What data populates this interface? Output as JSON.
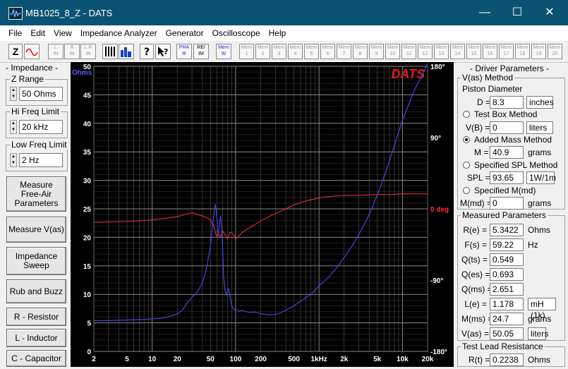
{
  "window": {
    "title": "MB1025_8_Z - DATS",
    "minimize": "—",
    "maximize": "☐",
    "close": "✕"
  },
  "menu": [
    "File",
    "Edit",
    "View",
    "Impedance Analyzer",
    "Generator",
    "Oscilloscope",
    "Help"
  ],
  "toolbar": {
    "z_label": "Z",
    "lin_buttons": [
      "L\nIN",
      "R\nIN",
      "L R\nIN"
    ],
    "pha_label": "PHA\nΦ",
    "reim_label": "RE/\nIM",
    "mem_label": "Mem\nW",
    "mem_slots": [
      "1",
      "2",
      "3",
      "4",
      "5",
      "6",
      "7",
      "8",
      "9",
      "10",
      "11",
      "12",
      "13",
      "14",
      "15",
      "16",
      "17",
      "18",
      "19",
      "20"
    ],
    "mem_prefix": "Mem"
  },
  "left_panel": {
    "title": "- Impedance -",
    "z_range": {
      "label": "Z Range",
      "value": "50 Ohms"
    },
    "hi_freq": {
      "label": "Hi Freq Limit",
      "value": "20 kHz"
    },
    "low_freq": {
      "label": "Low Freq Limit",
      "value": "2 Hz"
    },
    "buttons": [
      "Measure\nFree-Air\nParameters",
      "Measure V(as)",
      "Impedance\nSweep",
      "Rub and Buzz",
      "R - Resistor",
      "L - Inductor",
      "C - Capacitor"
    ]
  },
  "right_panel": {
    "title": "- Driver Parameters -",
    "vas_method_label": "V(as) Method",
    "piston_label": "Piston Diameter",
    "d_label": "D =",
    "d_value": "8.3",
    "d_unit": "inches",
    "test_box_label": "Test Box Method",
    "vb_label": "V(B) =",
    "vb_value": "0",
    "vb_unit": "liters",
    "added_mass_label": "Added Mass Method",
    "m_label": "M =",
    "m_value": "40.9",
    "m_unit": "grams",
    "spl_method_label": "Specified SPL Method",
    "spl_label": "SPL =",
    "spl_value": "93.65",
    "spl_unit": "1W/1m",
    "mmd_method_label": "Specified M(md)",
    "mmd_label": "M(md) =",
    "mmd_value": "0",
    "mmd_unit": "grams",
    "measured_title": "Measured Parameters",
    "measured": [
      {
        "label": "R(e) =",
        "value": "5.3422",
        "unit": "Ohms"
      },
      {
        "label": "F(s) =",
        "value": "59.22",
        "unit": "Hz"
      },
      {
        "label": "Q(ts) =",
        "value": "0.549",
        "unit": ""
      },
      {
        "label": "Q(es) =",
        "value": "0.693",
        "unit": ""
      },
      {
        "label": "Q(ms) =",
        "value": "2.651",
        "unit": ""
      },
      {
        "label": "L(e) =",
        "value": "1.178",
        "unit": "mH (1k)"
      },
      {
        "label": "M(ms) =",
        "value": "24.7",
        "unit": "grams"
      },
      {
        "label": "V(as) =",
        "value": "50.05",
        "unit": "liters"
      }
    ],
    "lead_title": "Test Lead Resistance",
    "lead_label": "R(t) =",
    "lead_value": "0.2238",
    "lead_unit": "Ohms",
    "selected_method": "Added Mass Method"
  },
  "chart_data": {
    "type": "line",
    "brand": "DATS",
    "left_axis_unit": "Ohms",
    "right_axis_center_label": "0 deg",
    "y_ticks": [
      0,
      5,
      10,
      15,
      20,
      25,
      30,
      35,
      40,
      45,
      50
    ],
    "phase_ticks": [
      "180°",
      "90°",
      "0 deg",
      "-90°",
      "-180°"
    ],
    "x_ticks": [
      "2",
      "5",
      "10",
      "20",
      "50",
      "100",
      "200",
      "500",
      "1kHz",
      "2k",
      "5k",
      "10k",
      "20k"
    ],
    "x_tick_values": [
      2,
      5,
      10,
      20,
      50,
      100,
      200,
      500,
      1000,
      2000,
      5000,
      10000,
      20000
    ],
    "xlim": [
      2,
      20000
    ],
    "ylim": [
      0,
      50
    ],
    "phase_lim": [
      -180,
      180
    ],
    "x_scale": "log",
    "grid": true,
    "colors": {
      "impedance": "#4a4af0",
      "phase": "#e03030",
      "grid": "#555555",
      "bg": "#000000",
      "brand": "#e01818"
    },
    "series": [
      {
        "axis": "impedance_ohms",
        "x": [
          2,
          3,
          5,
          8,
          10,
          13,
          15,
          17,
          20,
          23,
          26,
          30,
          35,
          40,
          43,
          46,
          50,
          52,
          55,
          57,
          59,
          61,
          62,
          64,
          66,
          68,
          70,
          72,
          75,
          78,
          82,
          86,
          90,
          95,
          100,
          110,
          120,
          130,
          150,
          170,
          200,
          250,
          300,
          350,
          400,
          500,
          600,
          800,
          1000,
          1300,
          1600,
          2000,
          2500,
          3000,
          4000,
          5000,
          6000,
          7000,
          8000,
          9000,
          10000,
          12000,
          14000,
          16000,
          18000,
          20000
        ],
        "y": [
          5.4,
          5.4,
          5.5,
          5.6,
          5.7,
          5.8,
          6,
          6.2,
          6.6,
          7.2,
          8.4,
          9.5,
          10.5,
          12,
          13.5,
          15.5,
          18.5,
          21,
          24,
          25.8,
          24.5,
          21,
          20.5,
          22,
          23.8,
          22,
          18,
          13,
          10.5,
          10,
          11,
          9.5,
          8,
          7.3,
          7.4,
          7,
          7.2,
          7,
          6.8,
          6.9,
          6.6,
          6.4,
          6.5,
          6.8,
          7.2,
          8,
          8.8,
          10,
          11.5,
          13,
          14.5,
          16.5,
          18.5,
          20.5,
          24,
          27.5,
          30.5,
          33.5,
          36,
          38.5,
          40.5,
          43.5,
          46,
          47.5,
          49,
          50.5
        ]
      },
      {
        "axis": "phase_deg",
        "x": [
          2,
          5,
          10,
          20,
          25,
          30,
          35,
          40,
          45,
          50,
          55,
          58,
          60,
          62,
          65,
          70,
          75,
          80,
          85,
          90,
          95,
          100,
          110,
          120,
          140,
          170,
          200,
          250,
          300,
          400,
          500,
          700,
          1000,
          1500,
          2000,
          3000,
          5000,
          7000,
          10000,
          15000,
          20000
        ],
        "y": [
          -17,
          -16,
          -14,
          -10,
          -7,
          -5,
          -7,
          -9,
          -11,
          -14,
          -22,
          -32,
          -35,
          -32,
          -36,
          -28,
          -33,
          -38,
          -30,
          -30,
          -33,
          -38,
          -34,
          -30,
          -25,
          -20,
          -15,
          -10,
          -6,
          0,
          5,
          10,
          14,
          16,
          17,
          17,
          18,
          18,
          19,
          19,
          19
        ]
      }
    ]
  }
}
